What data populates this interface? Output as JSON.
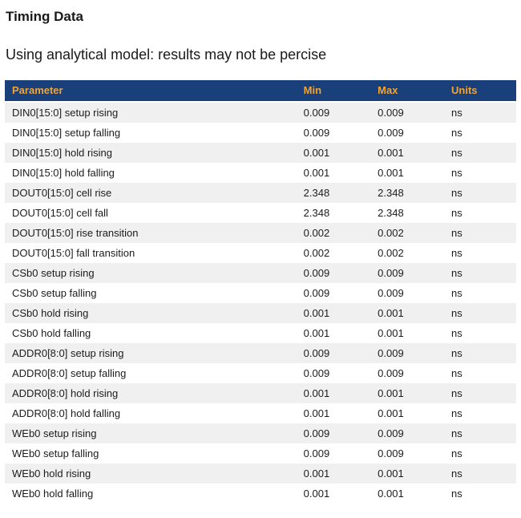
{
  "page": {
    "title": "Timing Data",
    "subtitle": "Using analytical model: results may not be percise"
  },
  "table": {
    "columns": [
      "Parameter",
      "Min",
      "Max",
      "Units"
    ],
    "rows": [
      {
        "parameter": "DIN0[15:0] setup rising",
        "min": "0.009",
        "max": "0.009",
        "units": "ns"
      },
      {
        "parameter": "DIN0[15:0] setup falling",
        "min": "0.009",
        "max": "0.009",
        "units": "ns"
      },
      {
        "parameter": "DIN0[15:0] hold rising",
        "min": "0.001",
        "max": "0.001",
        "units": "ns"
      },
      {
        "parameter": "DIN0[15:0] hold falling",
        "min": "0.001",
        "max": "0.001",
        "units": "ns"
      },
      {
        "parameter": "DOUT0[15:0] cell rise",
        "min": "2.348",
        "max": "2.348",
        "units": "ns"
      },
      {
        "parameter": "DOUT0[15:0] cell fall",
        "min": "2.348",
        "max": "2.348",
        "units": "ns"
      },
      {
        "parameter": "DOUT0[15:0] rise transition",
        "min": "0.002",
        "max": "0.002",
        "units": "ns"
      },
      {
        "parameter": "DOUT0[15:0] fall transition",
        "min": "0.002",
        "max": "0.002",
        "units": "ns"
      },
      {
        "parameter": "CSb0 setup rising",
        "min": "0.009",
        "max": "0.009",
        "units": "ns"
      },
      {
        "parameter": "CSb0 setup falling",
        "min": "0.009",
        "max": "0.009",
        "units": "ns"
      },
      {
        "parameter": "CSb0 hold rising",
        "min": "0.001",
        "max": "0.001",
        "units": "ns"
      },
      {
        "parameter": "CSb0 hold falling",
        "min": "0.001",
        "max": "0.001",
        "units": "ns"
      },
      {
        "parameter": "ADDR0[8:0] setup rising",
        "min": "0.009",
        "max": "0.009",
        "units": "ns"
      },
      {
        "parameter": "ADDR0[8:0] setup falling",
        "min": "0.009",
        "max": "0.009",
        "units": "ns"
      },
      {
        "parameter": "ADDR0[8:0] hold rising",
        "min": "0.001",
        "max": "0.001",
        "units": "ns"
      },
      {
        "parameter": "ADDR0[8:0] hold falling",
        "min": "0.001",
        "max": "0.001",
        "units": "ns"
      },
      {
        "parameter": "WEb0 setup rising",
        "min": "0.009",
        "max": "0.009",
        "units": "ns"
      },
      {
        "parameter": "WEb0 setup falling",
        "min": "0.009",
        "max": "0.009",
        "units": "ns"
      },
      {
        "parameter": "WEb0 hold rising",
        "min": "0.001",
        "max": "0.001",
        "units": "ns"
      },
      {
        "parameter": "WEb0 hold falling",
        "min": "0.001",
        "max": "0.001",
        "units": "ns"
      }
    ]
  },
  "colors": {
    "header_bg": "#19407a",
    "header_text": "#f0a435",
    "row_alt_bg": "#f0f0f0",
    "row_bg": "#ffffff",
    "text": "#1c1c1c"
  }
}
